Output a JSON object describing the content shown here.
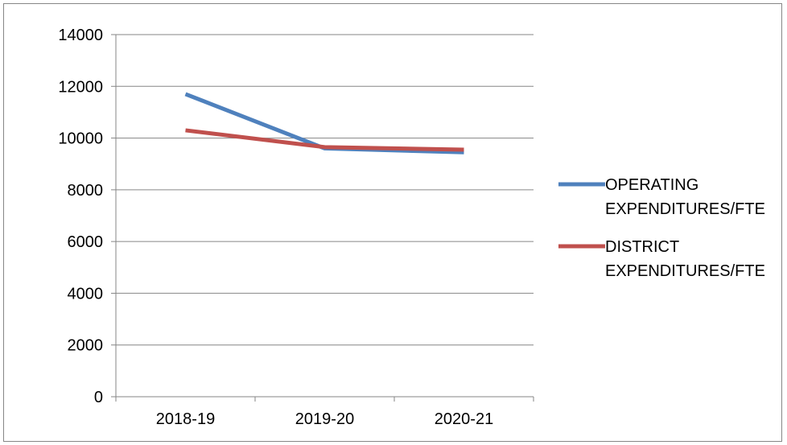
{
  "chart_data": {
    "type": "line",
    "title": "",
    "xlabel": "",
    "ylabel": "",
    "categories": [
      "2018-19",
      "2019-20",
      "2020-21"
    ],
    "ylim": [
      0,
      14000
    ],
    "yticks": [
      0,
      2000,
      4000,
      6000,
      8000,
      10000,
      12000,
      14000
    ],
    "grid": "horizontal",
    "legend_position": "right",
    "series": [
      {
        "name_lines": [
          "OPERATING",
          "EXPENDITURES/FTE"
        ],
        "values": [
          11700,
          9600,
          9450
        ],
        "color": "#4F81BD"
      },
      {
        "name_lines": [
          "DISTRICT",
          "EXPENDITURES/FTE"
        ],
        "values": [
          10300,
          9650,
          9550
        ],
        "color": "#C0504D"
      }
    ]
  }
}
